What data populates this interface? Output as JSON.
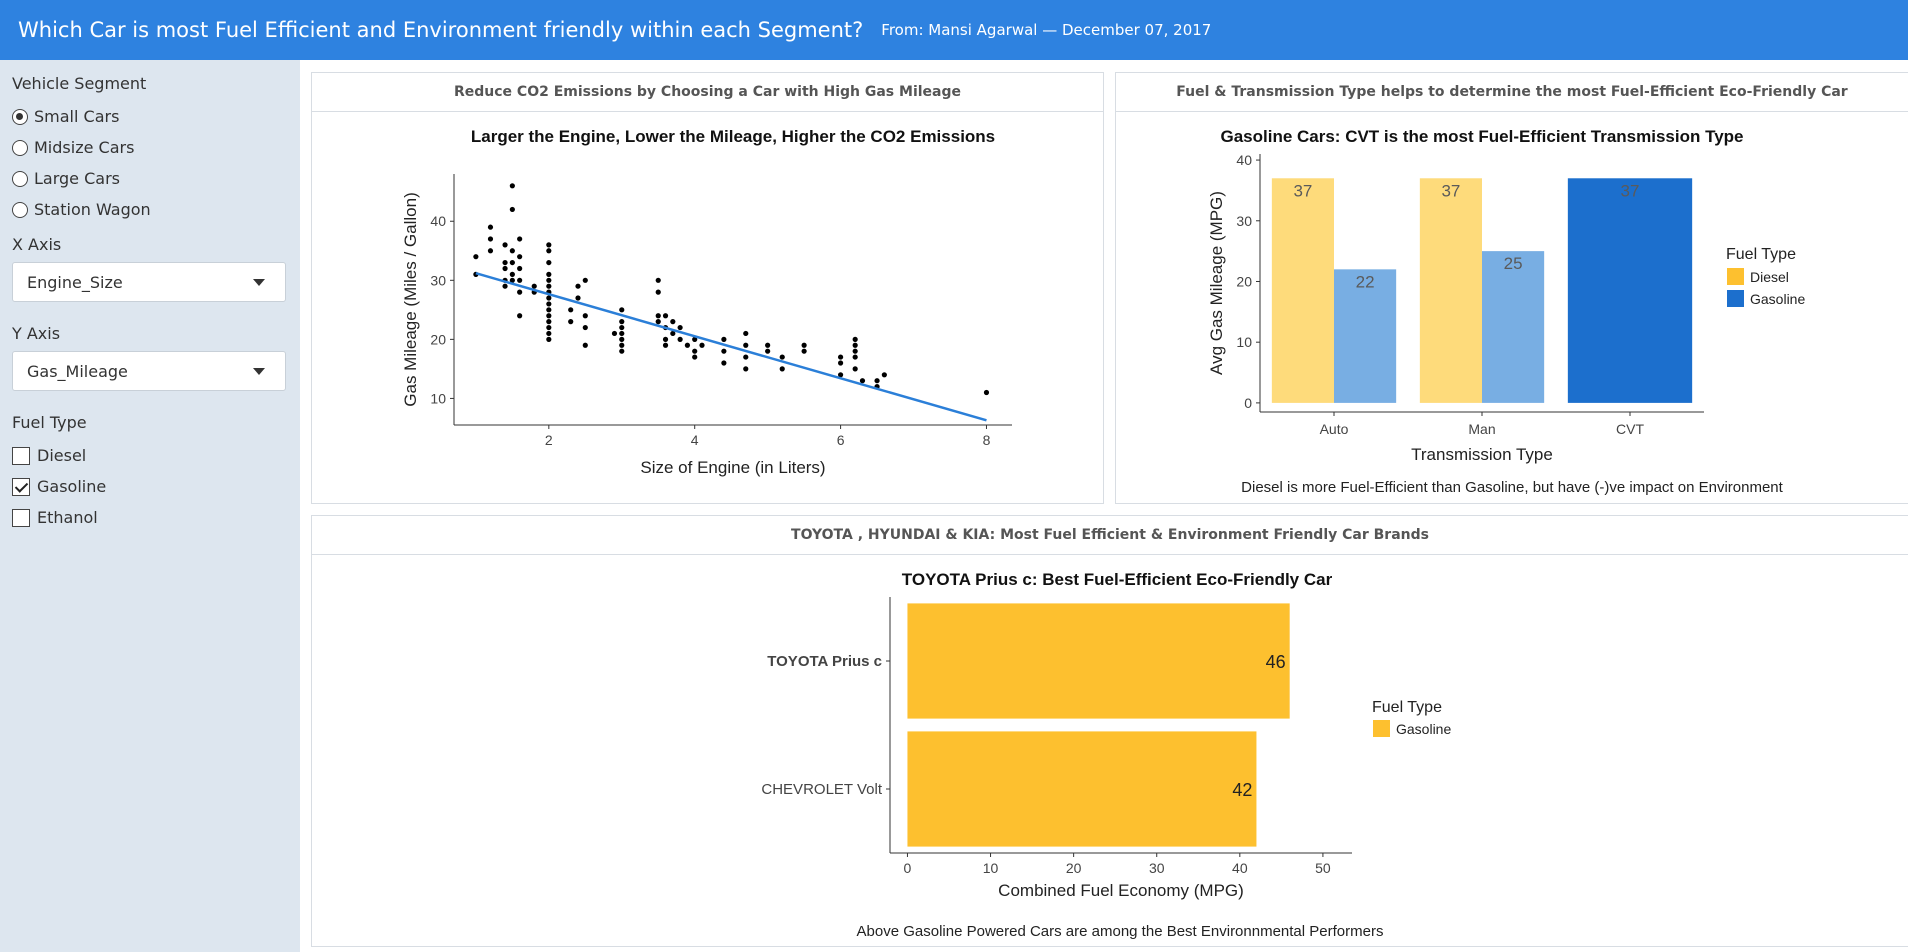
{
  "header": {
    "title": "Which Car is most Fuel Efficient and Environment friendly within each Segment?",
    "subtitle": "From: Mansi Agarwal — December 07, 2017"
  },
  "sidebar": {
    "segment_label": "Vehicle Segment",
    "segments": [
      {
        "label": "Small Cars",
        "selected": true
      },
      {
        "label": "Midsize Cars",
        "selected": false
      },
      {
        "label": "Large Cars",
        "selected": false
      },
      {
        "label": "Station Wagon",
        "selected": false
      }
    ],
    "x_axis_label": "X Axis",
    "x_axis_value": "Engine_Size",
    "y_axis_label": "Y Axis",
    "y_axis_value": "Gas_Mileage",
    "fuel_label": "Fuel Type",
    "fuels": [
      {
        "label": "Diesel",
        "checked": false
      },
      {
        "label": "Gasoline",
        "checked": true
      },
      {
        "label": "Ethanol",
        "checked": false
      }
    ]
  },
  "panels": {
    "scatter_header": "Reduce CO2 Emissions by Choosing a Car with High Gas Mileage",
    "bar_header": "Fuel & Transmission Type helps to determine the most Fuel-Efficient Eco-Friendly Car",
    "bottom_header": "TOYOTA , HYUNDAI & KIA: Most Fuel Efficient & Environment Friendly Car Brands"
  },
  "colors": {
    "header_bg": "#2e82e0",
    "sidebar_bg": "#dde6ef",
    "diesel": "#fedb7b",
    "gasoline_light": "#78aee3",
    "gasoline_dark": "#1c6fcd",
    "gold": "#fdc02f",
    "trend": "#2b7fd8"
  },
  "chart_data": [
    {
      "type": "scatter",
      "title": "Larger the Engine, Lower the Mileage, Higher the CO2 Emissions",
      "xlabel": "Size of Engine (in Liters)",
      "ylabel": "Gas Mileage (Miles / Gallon)",
      "xlim": [
        0.7,
        8.35
      ],
      "ylim": [
        5.5,
        48
      ],
      "xticks": [
        2,
        4,
        6,
        8
      ],
      "yticks": [
        10,
        20,
        30,
        40
      ],
      "trendline": [
        [
          1.0,
          31.2
        ],
        [
          8.0,
          6.3
        ]
      ],
      "points": [
        [
          1.0,
          34
        ],
        [
          1.0,
          31
        ],
        [
          1.2,
          37
        ],
        [
          1.2,
          35
        ],
        [
          1.2,
          39
        ],
        [
          1.4,
          36
        ],
        [
          1.4,
          33
        ],
        [
          1.4,
          32
        ],
        [
          1.4,
          30
        ],
        [
          1.4,
          29
        ],
        [
          1.5,
          46
        ],
        [
          1.5,
          42
        ],
        [
          1.5,
          35
        ],
        [
          1.5,
          33
        ],
        [
          1.5,
          31
        ],
        [
          1.5,
          30
        ],
        [
          1.6,
          37
        ],
        [
          1.6,
          34
        ],
        [
          1.6,
          32
        ],
        [
          1.6,
          30
        ],
        [
          1.6,
          28
        ],
        [
          1.6,
          24
        ],
        [
          1.8,
          29
        ],
        [
          1.8,
          28
        ],
        [
          2.0,
          36
        ],
        [
          2.0,
          35
        ],
        [
          2.0,
          33
        ],
        [
          2.0,
          31
        ],
        [
          2.0,
          30
        ],
        [
          2.0,
          29
        ],
        [
          2.0,
          28
        ],
        [
          2.0,
          27
        ],
        [
          2.0,
          26
        ],
        [
          2.0,
          25
        ],
        [
          2.0,
          24
        ],
        [
          2.0,
          23
        ],
        [
          2.0,
          22
        ],
        [
          2.0,
          21
        ],
        [
          2.0,
          20
        ],
        [
          2.3,
          25
        ],
        [
          2.3,
          23
        ],
        [
          2.4,
          29
        ],
        [
          2.4,
          27
        ],
        [
          2.5,
          30
        ],
        [
          2.5,
          24
        ],
        [
          2.5,
          22
        ],
        [
          2.5,
          19
        ],
        [
          2.9,
          21
        ],
        [
          3.0,
          25
        ],
        [
          3.0,
          23
        ],
        [
          3.0,
          22
        ],
        [
          3.0,
          21
        ],
        [
          3.0,
          20
        ],
        [
          3.0,
          19
        ],
        [
          3.0,
          18
        ],
        [
          3.5,
          30
        ],
        [
          3.5,
          28
        ],
        [
          3.5,
          24
        ],
        [
          3.5,
          23
        ],
        [
          3.6,
          24
        ],
        [
          3.6,
          22
        ],
        [
          3.6,
          20
        ],
        [
          3.6,
          19
        ],
        [
          3.7,
          23
        ],
        [
          3.7,
          21
        ],
        [
          3.8,
          22
        ],
        [
          3.8,
          20
        ],
        [
          3.9,
          19
        ],
        [
          4.0,
          20
        ],
        [
          4.0,
          18
        ],
        [
          4.0,
          17
        ],
        [
          4.1,
          19
        ],
        [
          4.4,
          20
        ],
        [
          4.4,
          18
        ],
        [
          4.4,
          16
        ],
        [
          4.7,
          21
        ],
        [
          4.7,
          19
        ],
        [
          4.7,
          17
        ],
        [
          4.7,
          15
        ],
        [
          5.0,
          19
        ],
        [
          5.0,
          18
        ],
        [
          5.2,
          17
        ],
        [
          5.2,
          15
        ],
        [
          5.5,
          19
        ],
        [
          5.5,
          18
        ],
        [
          6.0,
          17
        ],
        [
          6.0,
          16
        ],
        [
          6.0,
          14
        ],
        [
          6.2,
          20
        ],
        [
          6.2,
          19
        ],
        [
          6.2,
          18
        ],
        [
          6.2,
          17
        ],
        [
          6.2,
          15
        ],
        [
          6.3,
          13
        ],
        [
          6.5,
          13
        ],
        [
          6.5,
          12
        ],
        [
          6.6,
          14
        ],
        [
          8.0,
          11
        ]
      ]
    },
    {
      "type": "bar",
      "title": "Gasoline Cars: CVT is the most Fuel-Efficient Transmission Type",
      "xlabel": "Transmission Type",
      "ylabel": "Avg Gas Mileage (MPG)",
      "categories": [
        "Auto",
        "Man",
        "CVT"
      ],
      "ylim": [
        -1.5,
        41
      ],
      "yticks": [
        0,
        10,
        20,
        30,
        40
      ],
      "legend_title": "Fuel Type",
      "legend": [
        "Diesel",
        "Gasoline"
      ],
      "series": [
        {
          "name": "Diesel",
          "values": [
            37,
            37,
            null
          ]
        },
        {
          "name": "Gasoline",
          "values": [
            22,
            25,
            37
          ]
        }
      ],
      "caption": "Diesel is more Fuel-Efficient than Gasoline, but have (-)ve impact on Environment"
    },
    {
      "type": "bar",
      "orientation": "horizontal",
      "title": "TOYOTA Prius c: Best Fuel-Efficient Eco-Friendly Car",
      "xlabel": "Combined Fuel Economy (MPG)",
      "categories": [
        "TOYOTA Prius c",
        "CHEVROLET Volt"
      ],
      "values": [
        46,
        42
      ],
      "xlim": [
        -2.1,
        53.5
      ],
      "xticks": [
        0,
        10,
        20,
        30,
        40,
        50
      ],
      "legend_title": "Fuel Type",
      "legend": [
        "Gasoline"
      ],
      "caption": "Above Gasoline Powered Cars are among the Best Environnmental Performers"
    }
  ]
}
